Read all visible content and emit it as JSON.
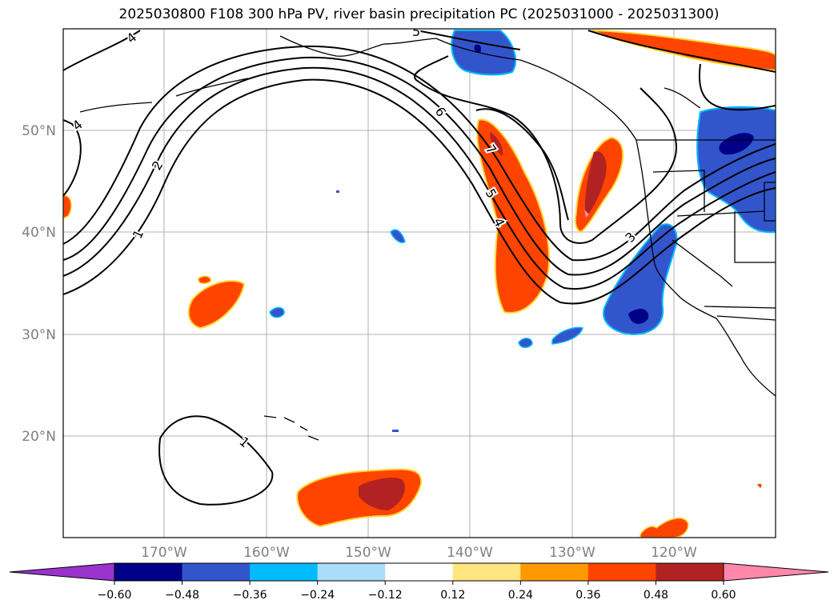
{
  "title": "2025030800 F108 300 hPa PV, river basin precipitation PC (2025031000 - 2025031300)",
  "map": {
    "lat_labels": [
      "50°N",
      "40°N",
      "30°N",
      "20°N"
    ],
    "lon_labels": [
      "170°W",
      "160°W",
      "150°W",
      "140°W",
      "130°W",
      "120°W"
    ],
    "gridline_color": "#b0b0b0",
    "label_color": "#808080",
    "contour_labels": [
      "4",
      "4",
      "2",
      "1",
      "6",
      "5",
      "7",
      "5",
      "4",
      "3",
      "1",
      "5"
    ]
  },
  "colorbar": {
    "ticks": [
      "−0.60",
      "−0.48",
      "−0.36",
      "−0.24",
      "−0.12",
      "0.12",
      "0.24",
      "0.36",
      "0.48",
      "0.60"
    ],
    "colors": [
      "#9933cc",
      "#000088",
      "#3355cc",
      "#00bbff",
      "#aaddf8",
      "#ffffff",
      "#ffe680",
      "#ff9900",
      "#ff4400",
      "#b22222",
      "#ff88aa"
    ]
  }
}
